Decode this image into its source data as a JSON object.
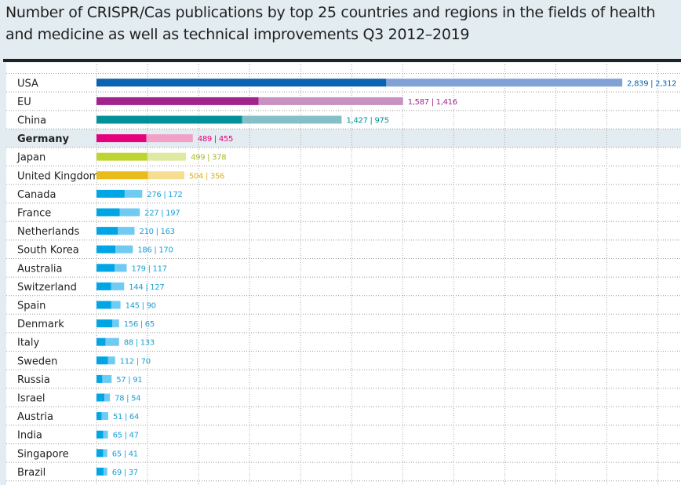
{
  "chart_data": {
    "type": "bar",
    "stacked": true,
    "orientation": "horizontal",
    "title": "Number of CRISPR/Cas publications by top 25 countries and regions in the fields of health and medicine as well as technical improvements Q3 2012–2019",
    "grid": true,
    "grid_step": 500,
    "highlighted": "Germany",
    "categories": [
      "USA",
      "EU",
      "China",
      "Germany",
      "Japan",
      "United Kingdom",
      "Canada",
      "France",
      "Netherlands",
      "South Korea",
      "Australia",
      "Switzerland",
      "Spain",
      "Denmark",
      "Italy",
      "Sweden",
      "Russia",
      "Israel",
      "Austria",
      "India",
      "Singapore",
      "Brazil"
    ],
    "series": [
      {
        "values": [
          2839,
          1587,
          1427,
          489,
          499,
          504,
          276,
          227,
          210,
          186,
          179,
          144,
          145,
          156,
          88,
          112,
          57,
          78,
          51,
          65,
          65,
          69
        ]
      },
      {
        "values": [
          2312,
          1416,
          975,
          455,
          378,
          356,
          172,
          197,
          163,
          170,
          117,
          127,
          90,
          65,
          133,
          70,
          91,
          54,
          64,
          47,
          41,
          37
        ]
      }
    ],
    "labels": [
      "2,839 | 2,312",
      "1,587 | 1,416",
      "1,427 | 975",
      "489 | 455",
      "499 | 378",
      "504 | 356",
      "276 | 172",
      "227 | 197",
      "210 | 163",
      "186 | 170",
      "179 | 117",
      "144 | 127",
      "145 | 90",
      "156 | 65",
      "88 | 133",
      "112 | 70",
      "57 | 91",
      "78 | 54",
      "51 | 64",
      "65 | 47",
      "65 | 41",
      "69 | 37"
    ],
    "colors": [
      [
        "#0a62b0",
        "#82a1d5"
      ],
      [
        "#a2238e",
        "#c891c1"
      ],
      [
        "#00919a",
        "#83c0c7"
      ],
      [
        "#e6007e",
        "#f3a0c6"
      ],
      [
        "#bed531",
        "#dfe9a2"
      ],
      [
        "#e9bb1b",
        "#f5de91"
      ]
    ],
    "default_colors": [
      "#00a5e6",
      "#70cbf3"
    ],
    "label_colors": [
      "#0a62b0",
      "#a2238e",
      "#00919a",
      "#e6007e",
      "#a9bd2a",
      "#e0b218"
    ],
    "default_label_color": "#1a9fd6"
  }
}
